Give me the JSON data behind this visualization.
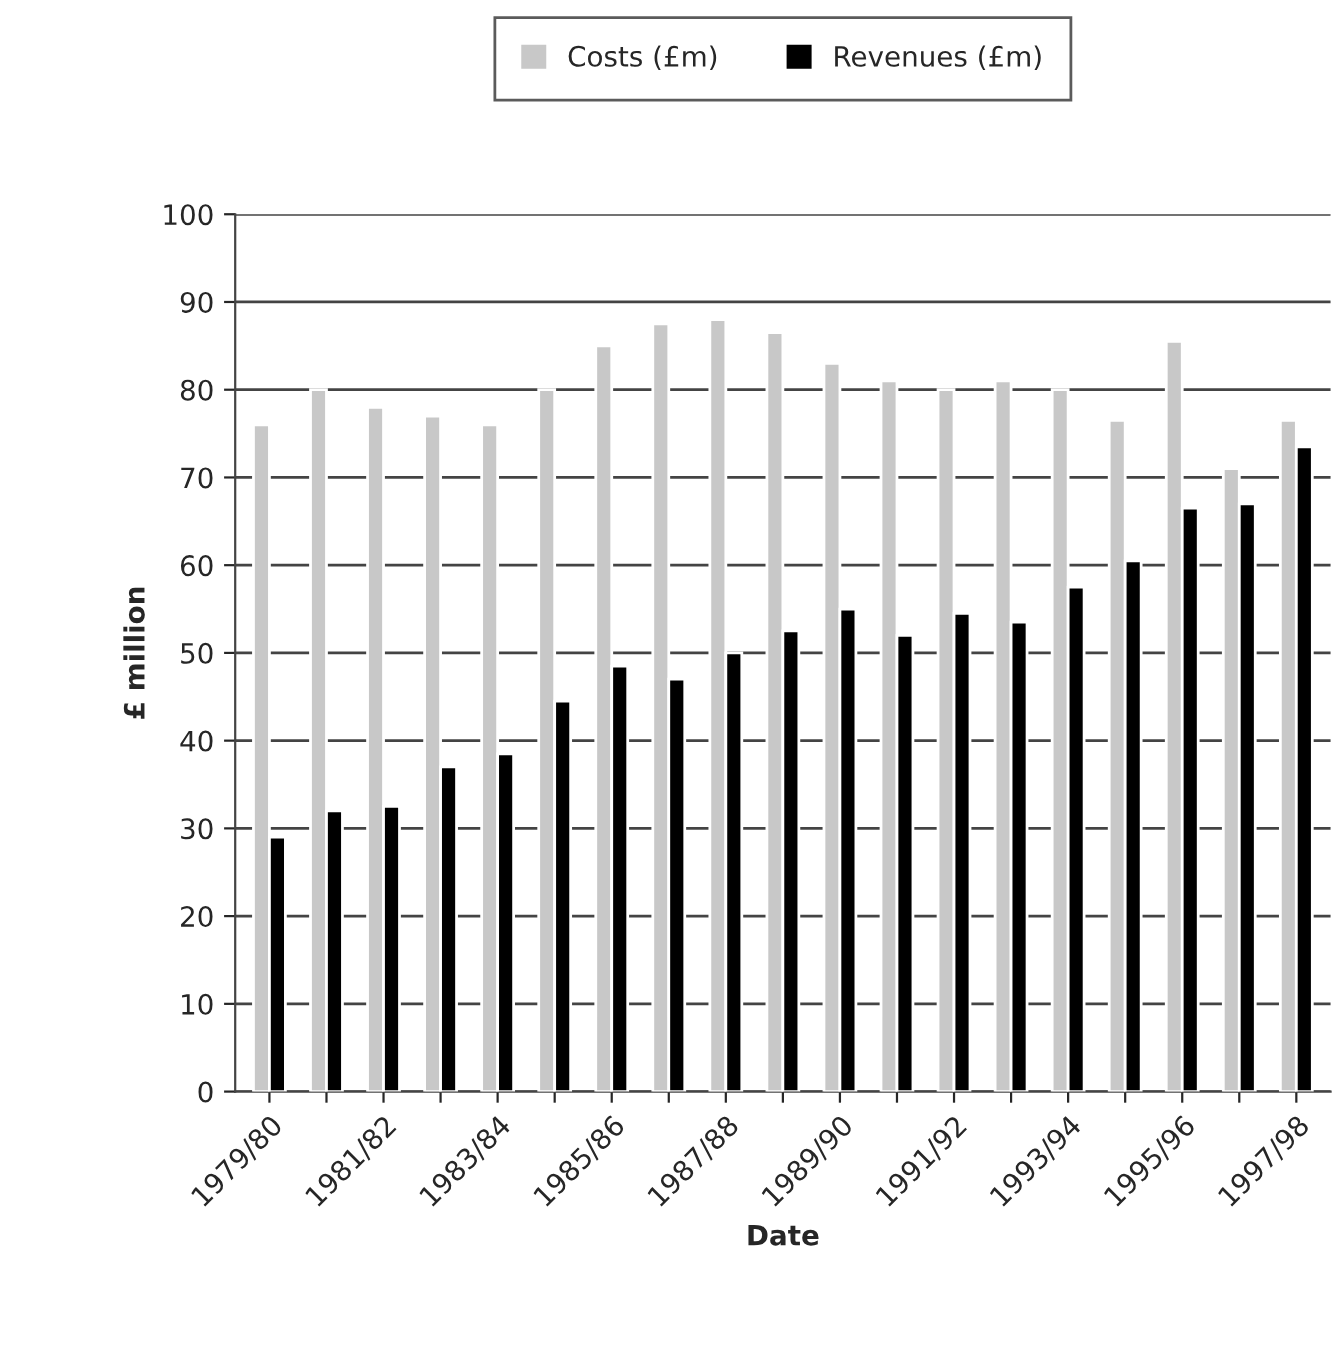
{
  "chart_data": {
    "type": "bar",
    "xlabel": "Date",
    "ylabel": "£ million",
    "categories": [
      "1979/80",
      null,
      "1981/82",
      null,
      "1983/84",
      null,
      "1985/86",
      null,
      "1987/88",
      null,
      "1989/90",
      null,
      "1991/92",
      null,
      "1993/94",
      null,
      "1995/96",
      null,
      "1997/98"
    ],
    "series": [
      {
        "name": "Costs (£m)",
        "color": "#c8c8c8",
        "values": [
          76,
          80,
          78,
          77,
          76,
          80,
          85,
          87.5,
          88,
          86.5,
          83,
          81,
          80,
          81,
          80,
          76.5,
          85.5,
          71,
          76.5
        ]
      },
      {
        "name": "Revenues (£m)",
        "color": "#000000",
        "values": [
          29,
          32,
          32.5,
          37,
          38.5,
          44.5,
          48.5,
          47,
          50,
          52.5,
          55,
          52,
          54.5,
          53.5,
          57.5,
          60.5,
          66.5,
          67,
          73.5
        ]
      }
    ],
    "ylim": [
      0,
      100
    ],
    "yticks": [
      0,
      10,
      20,
      30,
      40,
      50,
      60,
      70,
      80,
      90,
      100
    ],
    "grid": "y",
    "legend": "top"
  }
}
